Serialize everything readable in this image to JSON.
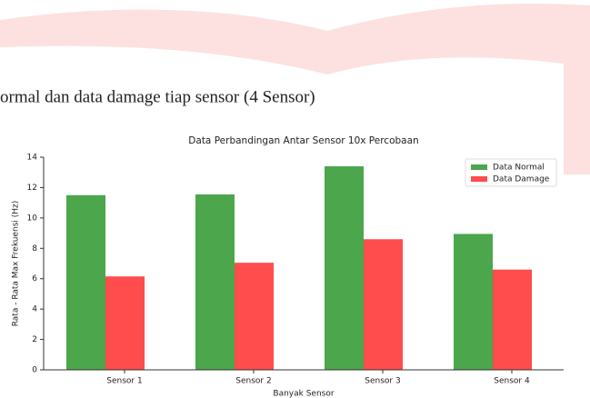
{
  "heading": "ormal dan data damage tiap sensor (4 Sensor)",
  "chart_data": {
    "type": "bar",
    "title": "Data Perbandingan Antar Sensor 10x Percobaan",
    "x_label": "Banyak Sensor",
    "y_label": "Rata - Rata Max Frekuensi (Hz)",
    "categories": [
      "Sensor 1",
      "Sensor 2",
      "Sensor 3",
      "Sensor 4"
    ],
    "series": [
      {
        "name": "Data Normal",
        "color": "#4ca64c",
        "values": [
          11.5,
          11.55,
          13.4,
          8.95
        ]
      },
      {
        "name": "Data Damage",
        "color": "#ff4c4c",
        "values": [
          6.15,
          7.05,
          8.6,
          6.6
        ]
      }
    ],
    "ylim": [
      0,
      14
    ],
    "yticks": [
      0,
      2,
      4,
      6,
      8,
      10,
      12,
      14
    ],
    "grid": false,
    "legend": "upper right"
  }
}
